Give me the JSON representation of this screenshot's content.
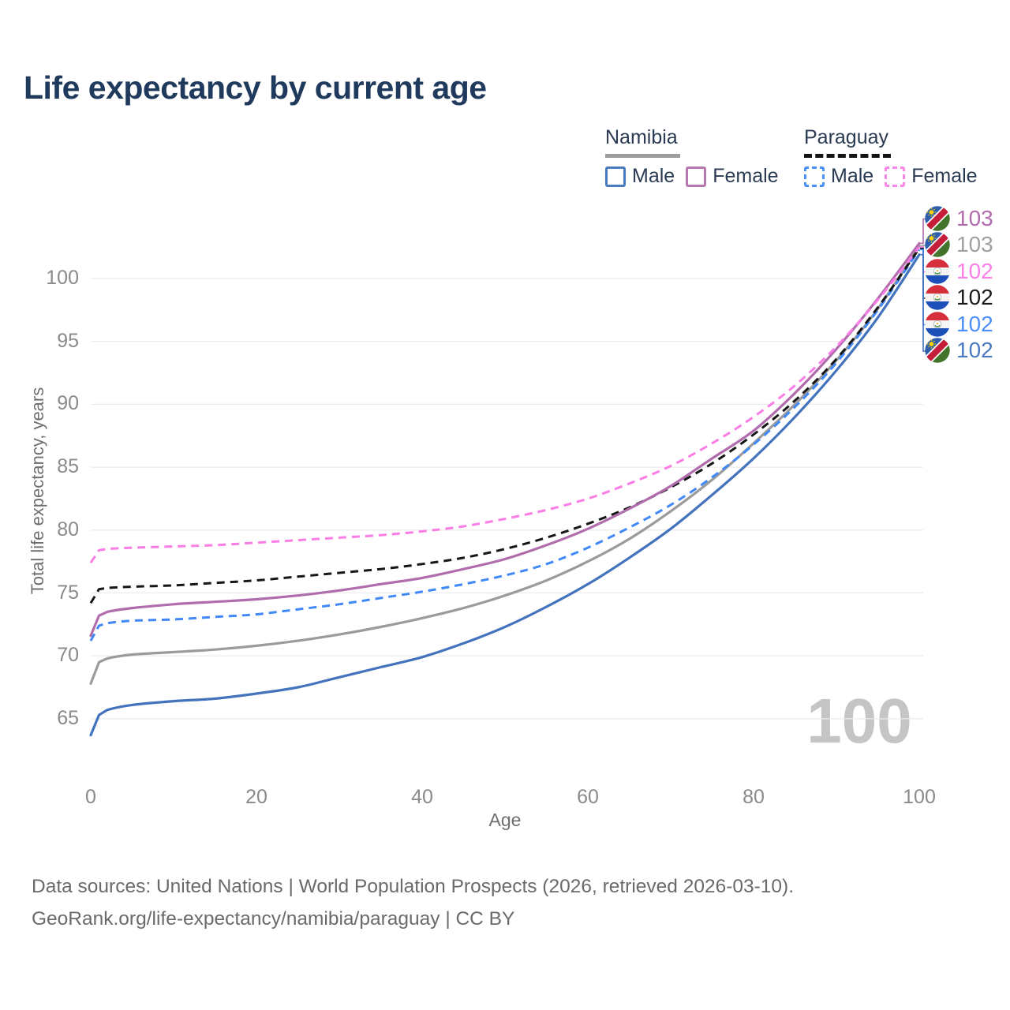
{
  "header": {
    "title": "Life expectancy by current age"
  },
  "legend": {
    "groups": [
      {
        "label": "Namibia",
        "line_style": "solid",
        "line_color": "#9e9e9e",
        "items": [
          {
            "label": "Male",
            "color": "#4a7ac2",
            "style": "solid"
          },
          {
            "label": "Female",
            "color": "#b477af",
            "style": "solid"
          }
        ]
      },
      {
        "label": "Paraguay",
        "line_style": "dashed",
        "line_color": "#141414",
        "items": [
          {
            "label": "Male",
            "color": "#4c8df8",
            "style": "dashed"
          },
          {
            "label": "Female",
            "color": "#fa86e9",
            "style": "dashed"
          }
        ]
      }
    ]
  },
  "axes": {
    "x_label": "Age",
    "y_label": "Total life expectancy, years",
    "x_ticks": [
      0,
      20,
      40,
      60,
      80,
      100
    ],
    "y_ticks": [
      65,
      70,
      75,
      80,
      85,
      90,
      95,
      100
    ]
  },
  "watermark": {
    "value": "100"
  },
  "right_labels": [
    {
      "value": "103",
      "country": "namibia",
      "color": "#b06cad",
      "series": "Namibia Female"
    },
    {
      "value": "103",
      "country": "namibia",
      "color": "#a0a0a0",
      "series": "Namibia"
    },
    {
      "value": "102",
      "country": "paraguay",
      "color": "#fb80e8",
      "series": "Paraguay Female"
    },
    {
      "value": "102",
      "country": "paraguay",
      "color": "#1a1a1a",
      "series": "Paraguay"
    },
    {
      "value": "102",
      "country": "paraguay",
      "color": "#4b8df9",
      "series": "Paraguay Male"
    },
    {
      "value": "102",
      "country": "namibia",
      "color": "#4a7ac2",
      "series": "Namibia Male"
    }
  ],
  "footer": {
    "line1": "Data sources: United Nations | World Population Prospects (2026, retrieved 2026-03-10).",
    "line2": "GeoRank.org/life-expectancy/namibia/paraguay | CC BY"
  },
  "chart_data": {
    "type": "line",
    "title": "Life expectancy by current age",
    "xlabel": "Age",
    "ylabel": "Total life expectancy, years",
    "xlim": [
      0,
      100
    ],
    "ylim": [
      63,
      103.5
    ],
    "grid": true,
    "legend_position": "top-right",
    "x": [
      0,
      1,
      2,
      5,
      10,
      15,
      20,
      25,
      30,
      35,
      40,
      45,
      50,
      55,
      60,
      65,
      70,
      75,
      80,
      85,
      90,
      95,
      100
    ],
    "series": [
      {
        "name": "Namibia Male",
        "country": "Namibia",
        "sex": "Male",
        "color": "#4373bd",
        "dash": "solid",
        "values": [
          63.7,
          65.3,
          65.7,
          66.1,
          66.4,
          66.6,
          67.0,
          67.5,
          68.3,
          69.1,
          69.9,
          71.0,
          72.3,
          73.9,
          75.7,
          77.8,
          80.1,
          82.8,
          85.7,
          89.0,
          92.7,
          96.9,
          101.9
        ]
      },
      {
        "name": "Namibia",
        "country": "Namibia",
        "sex": "Both",
        "color": "#9b9b9b",
        "dash": "solid",
        "values": [
          67.8,
          69.5,
          69.8,
          70.1,
          70.3,
          70.5,
          70.8,
          71.2,
          71.7,
          72.3,
          73.0,
          73.8,
          74.8,
          76.0,
          77.5,
          79.3,
          81.5,
          84.0,
          86.9,
          90.0,
          93.5,
          97.6,
          102.6
        ]
      },
      {
        "name": "Paraguay Male",
        "country": "Paraguay",
        "sex": "Male",
        "color": "#4089f7",
        "dash": "dashed",
        "values": [
          71.2,
          72.4,
          72.6,
          72.8,
          72.9,
          73.1,
          73.3,
          73.7,
          74.1,
          74.6,
          75.1,
          75.7,
          76.4,
          77.3,
          78.6,
          80.2,
          82.0,
          84.2,
          86.8,
          89.8,
          93.3,
          97.5,
          102.3
        ]
      },
      {
        "name": "Paraguay",
        "country": "Paraguay",
        "sex": "Both",
        "color": "#161616",
        "dash": "dashed",
        "values": [
          74.2,
          75.3,
          75.4,
          75.5,
          75.6,
          75.8,
          76.0,
          76.3,
          76.6,
          76.9,
          77.3,
          77.8,
          78.5,
          79.4,
          80.5,
          81.8,
          83.4,
          85.3,
          87.6,
          90.3,
          93.6,
          97.7,
          102.4
        ]
      },
      {
        "name": "Namibia Female",
        "country": "Namibia",
        "sex": "Female",
        "color": "#b06cad",
        "dash": "solid",
        "values": [
          71.6,
          73.2,
          73.5,
          73.8,
          74.1,
          74.3,
          74.5,
          74.8,
          75.2,
          75.7,
          76.2,
          76.9,
          77.7,
          78.8,
          80.1,
          81.7,
          83.5,
          85.7,
          87.9,
          90.9,
          94.4,
          98.4,
          102.8
        ]
      },
      {
        "name": "Paraguay Female",
        "country": "Paraguay",
        "sex": "Female",
        "color": "#fa7ce5",
        "dash": "dashed",
        "values": [
          77.4,
          78.4,
          78.5,
          78.6,
          78.7,
          78.8,
          79.0,
          79.2,
          79.4,
          79.6,
          79.9,
          80.3,
          80.9,
          81.6,
          82.5,
          83.7,
          85.1,
          86.9,
          89.0,
          91.5,
          94.6,
          98.3,
          102.5
        ]
      }
    ]
  }
}
